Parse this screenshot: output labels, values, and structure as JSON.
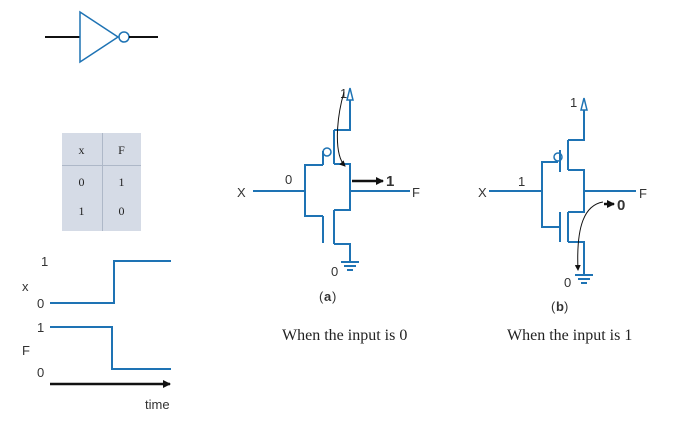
{
  "truth_table": {
    "headers": [
      "x",
      "F"
    ],
    "rows": [
      [
        "0",
        "1"
      ],
      [
        "1",
        "0"
      ]
    ]
  },
  "timing": {
    "x_label": "x",
    "f_label": "F",
    "x_high": "1",
    "x_low": "0",
    "f_high": "1",
    "f_low": "0",
    "time_label": "time"
  },
  "circuit_a": {
    "input_label": "X",
    "input_value": "0",
    "vdd_label": "1",
    "gnd_label": "0",
    "output_value": "1",
    "output_label": "F",
    "caption": "a",
    "description": "When the input is 0"
  },
  "circuit_b": {
    "input_label": "X",
    "input_value": "1",
    "vdd_label": "1",
    "gnd_label": "0",
    "output_value": "0",
    "output_label": "F",
    "caption": "b",
    "description": "When the input is 1"
  },
  "colors": {
    "wire": "#1e73b4",
    "table_bg": "#d5dbe6"
  }
}
